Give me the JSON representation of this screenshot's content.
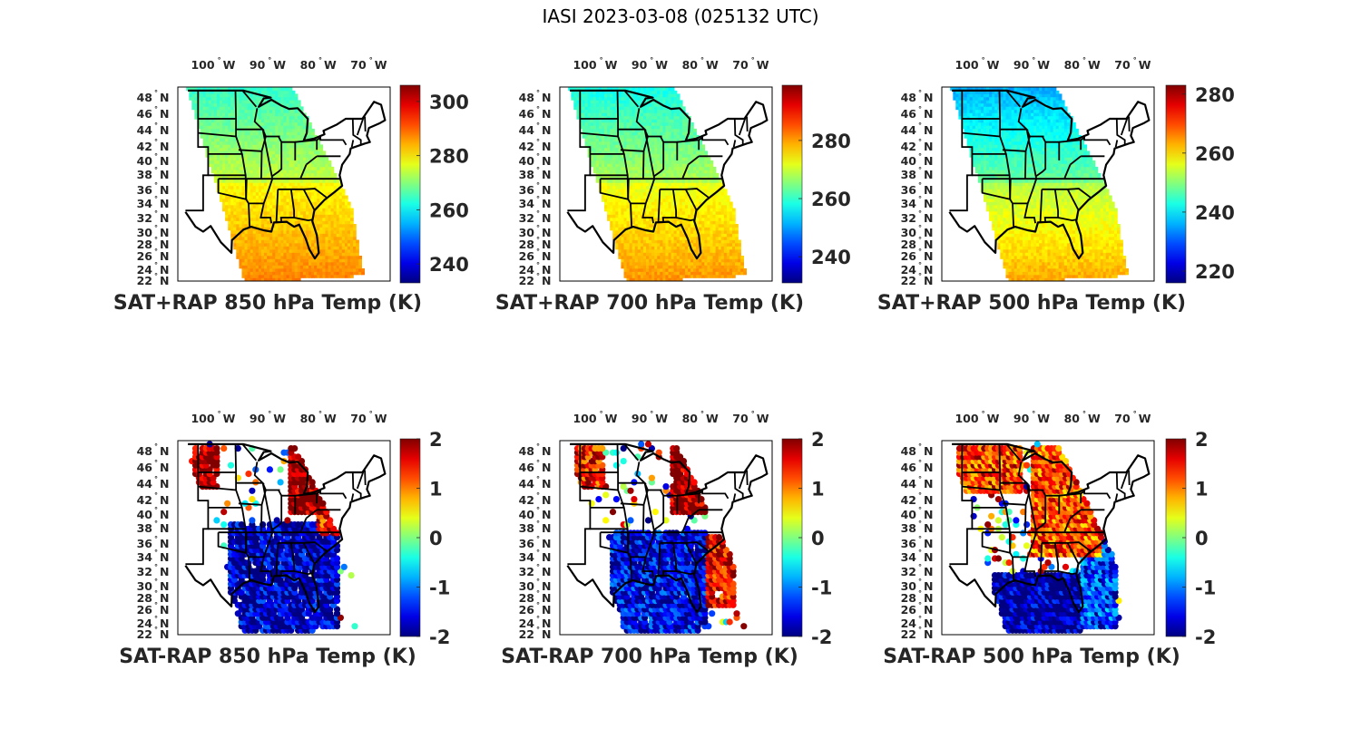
{
  "figure_title": "IASI 2023-03-08 (025132 UTC)",
  "chart_data": [
    {
      "type": "heatmap",
      "title": "SAT+RAP 850 hPa Temp (K)",
      "colormap": "jet",
      "clim": [
        233,
        306
      ],
      "colorbar_ticks": [
        "240",
        "260",
        "280",
        "300"
      ],
      "colorbar_tick_values": [
        240,
        260,
        280,
        300
      ],
      "lon_ticks": [
        "100",
        "90",
        "80",
        "70"
      ],
      "lon_tick_values": [
        -100,
        -90,
        -80,
        -70
      ],
      "lat_ticks": [
        "48",
        "46",
        "44",
        "42",
        "40",
        "38",
        "36",
        "34",
        "32",
        "30",
        "28",
        "26",
        "24",
        "22"
      ],
      "lat_tick_values": [
        48,
        46,
        44,
        42,
        40,
        38,
        36,
        34,
        32,
        30,
        28,
        26,
        24,
        22
      ],
      "lon_suffix": "W",
      "lat_suffix": "N",
      "field": {
        "north": 264,
        "south": 288,
        "west_bias": -3,
        "east_bias": 0,
        "noise": 2
      },
      "mode": "full"
    },
    {
      "type": "heatmap",
      "title": "SAT+RAP 700 hPa Temp (K)",
      "colormap": "jet",
      "clim": [
        231,
        299
      ],
      "colorbar_ticks": [
        "240",
        "260",
        "280"
      ],
      "colorbar_tick_values": [
        240,
        260,
        280
      ],
      "lon_ticks": [
        "100",
        "90",
        "80",
        "70"
      ],
      "lon_tick_values": [
        -100,
        -90,
        -80,
        -70
      ],
      "lat_ticks": [
        "48",
        "46",
        "44",
        "42",
        "40",
        "38",
        "36",
        "34",
        "32",
        "30",
        "28",
        "26",
        "24",
        "22"
      ],
      "lat_tick_values": [
        48,
        46,
        44,
        42,
        40,
        38,
        36,
        34,
        32,
        30,
        28,
        26,
        24,
        22
      ],
      "lon_suffix": "W",
      "lat_suffix": "N",
      "field": {
        "north": 258,
        "south": 281,
        "west_bias": -2,
        "east_bias": 0,
        "noise": 2
      },
      "mode": "full"
    },
    {
      "type": "heatmap",
      "title": "SAT+RAP 500 hPa Temp (K)",
      "colormap": "jet",
      "clim": [
        216,
        283
      ],
      "colorbar_ticks": [
        "220",
        "240",
        "260",
        "280"
      ],
      "colorbar_tick_values": [
        220,
        240,
        260,
        280
      ],
      "lon_ticks": [
        "100",
        "90",
        "80",
        "70"
      ],
      "lon_tick_values": [
        -100,
        -90,
        -80,
        -70
      ],
      "lat_ticks": [
        "48",
        "46",
        "44",
        "42",
        "40",
        "38",
        "36",
        "34",
        "32",
        "30",
        "28",
        "26",
        "24",
        "22"
      ],
      "lat_tick_values": [
        48,
        46,
        44,
        42,
        40,
        38,
        36,
        34,
        32,
        30,
        28,
        26,
        24,
        22
      ],
      "lon_suffix": "W",
      "lat_suffix": "N",
      "field": {
        "north": 236,
        "south": 264,
        "west_bias": -3,
        "east_bias": 0,
        "noise": 2
      },
      "mode": "full"
    },
    {
      "type": "scatter",
      "title": "SAT-RAP 850 hPa Temp (K)",
      "colormap": "jet",
      "clim": [
        -2,
        2
      ],
      "colorbar_ticks": [
        "2",
        "1",
        "0",
        "-1",
        "-2"
      ],
      "colorbar_tick_values": [
        2,
        1,
        0,
        -1,
        -2
      ],
      "lon_ticks": [
        "100",
        "90",
        "80",
        "70"
      ],
      "lon_tick_values": [
        -100,
        -90,
        -80,
        -70
      ],
      "lat_ticks": [
        "48",
        "46",
        "44",
        "42",
        "40",
        "38",
        "36",
        "34",
        "32",
        "30",
        "28",
        "26",
        "24",
        "22"
      ],
      "lat_tick_values": [
        48,
        46,
        44,
        42,
        40,
        38,
        36,
        34,
        32,
        30,
        28,
        26,
        24,
        22
      ],
      "lon_suffix": "W",
      "lat_suffix": "N",
      "regions": [
        {
          "lon": [
            -105,
            -100
          ],
          "lat": [
            43,
            49
          ],
          "value": 2
        },
        {
          "lon": [
            -86,
            -78
          ],
          "lat": [
            39,
            49
          ],
          "value": 2
        },
        {
          "lon": [
            -80,
            -76
          ],
          "lat": [
            36,
            42
          ],
          "value": 1.5
        },
        {
          "lon": [
            -98,
            -76
          ],
          "lat": [
            22,
            38
          ],
          "value": -1.8
        }
      ],
      "mode": "diff",
      "sparse": 0.55
    },
    {
      "type": "scatter",
      "title": "SAT-RAP 700 hPa Temp (K)",
      "colormap": "jet",
      "clim": [
        -2,
        2
      ],
      "colorbar_ticks": [
        "2",
        "1",
        "0",
        "-1",
        "-2"
      ],
      "colorbar_tick_values": [
        2,
        1,
        0,
        -1,
        -2
      ],
      "lon_ticks": [
        "100",
        "90",
        "80",
        "70"
      ],
      "lon_tick_values": [
        -100,
        -90,
        -80,
        -70
      ],
      "lat_ticks": [
        "48",
        "46",
        "44",
        "42",
        "40",
        "38",
        "36",
        "34",
        "32",
        "30",
        "28",
        "26",
        "24",
        "22"
      ],
      "lat_tick_values": [
        48,
        46,
        44,
        42,
        40,
        38,
        36,
        34,
        32,
        30,
        28,
        26,
        24,
        22
      ],
      "lon_suffix": "W",
      "lat_suffix": "N",
      "regions": [
        {
          "lon": [
            -105,
            -99
          ],
          "lat": [
            43,
            49
          ],
          "value": 1.5
        },
        {
          "lon": [
            -86,
            -78
          ],
          "lat": [
            39,
            49
          ],
          "value": 2
        },
        {
          "lon": [
            -79,
            -73
          ],
          "lat": [
            26,
            36
          ],
          "value": 1.6
        },
        {
          "lon": [
            -98,
            -79
          ],
          "lat": [
            22,
            37
          ],
          "value": -1.6
        }
      ],
      "mode": "diff",
      "sparse": 0.6
    },
    {
      "type": "scatter",
      "title": "SAT-RAP 500 hPa Temp (K)",
      "colormap": "jet",
      "clim": [
        -2,
        2
      ],
      "colorbar_ticks": [
        "2",
        "1",
        "0",
        "-1",
        "-2"
      ],
      "colorbar_tick_values": [
        2,
        1,
        0,
        -1,
        -2
      ],
      "lon_ticks": [
        "100",
        "90",
        "80",
        "70"
      ],
      "lon_tick_values": [
        -100,
        -90,
        -80,
        -70
      ],
      "lat_ticks": [
        "48",
        "46",
        "44",
        "42",
        "40",
        "38",
        "36",
        "34",
        "32",
        "30",
        "28",
        "26",
        "24",
        "22"
      ],
      "lat_tick_values": [
        48,
        46,
        44,
        42,
        40,
        38,
        36,
        34,
        32,
        30,
        28,
        26,
        24,
        22
      ],
      "lon_suffix": "W",
      "lat_suffix": "N",
      "regions": [
        {
          "lon": [
            -105,
            -92
          ],
          "lat": [
            42,
            49
          ],
          "value": 1.3
        },
        {
          "lon": [
            -90,
            -76
          ],
          "lat": [
            33,
            49
          ],
          "value": 1.2
        },
        {
          "lon": [
            -98,
            -80
          ],
          "lat": [
            22,
            31
          ],
          "value": -1.9
        },
        {
          "lon": [
            -80,
            -73
          ],
          "lat": [
            22,
            36
          ],
          "value": -1.3
        }
      ],
      "mode": "diff",
      "sparse": 0.85
    }
  ]
}
